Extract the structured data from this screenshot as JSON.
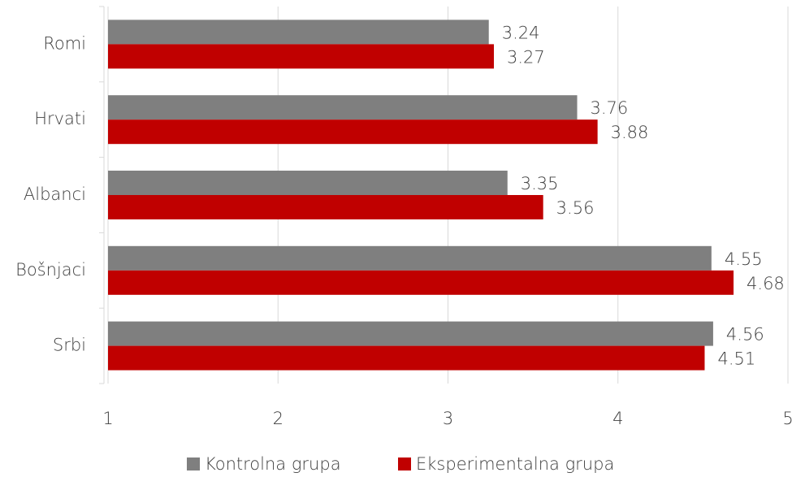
{
  "chart_data": {
    "type": "hbar",
    "categories": [
      "Romi",
      "Hrvati",
      "Albanci",
      "Bošnjaci",
      "Srbi"
    ],
    "series": [
      {
        "name": "Kontrolna grupa",
        "color": "#7f7f7f",
        "values": [
          3.24,
          3.76,
          3.35,
          4.55,
          4.56
        ]
      },
      {
        "name": "Eksperimentalna grupa",
        "color": "#c00000",
        "values": [
          3.27,
          3.88,
          3.56,
          4.68,
          4.51
        ]
      }
    ],
    "xlim": [
      1,
      5
    ],
    "xticks": [
      1,
      2,
      3,
      4,
      5
    ],
    "grid": true,
    "legend": "bottom"
  }
}
